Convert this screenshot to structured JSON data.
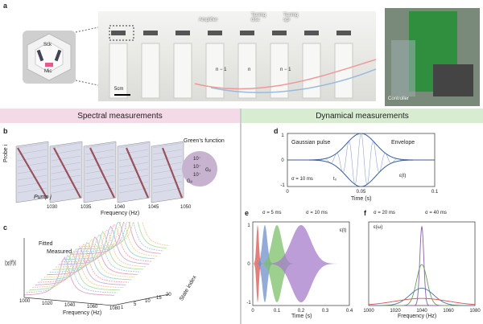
{
  "panels": {
    "a": "a",
    "b": "b",
    "c": "c",
    "d": "d",
    "e": "e",
    "f": "f"
  },
  "panel_a": {
    "photo_labels": {
      "sck": "Sck",
      "mic": "Mic",
      "amplifier": "Amplifier",
      "tuning_disc": "Tuning\ndisc",
      "tuning_spr": "Tuning\nspr",
      "n_minus": "n − 1",
      "n": "n",
      "n_plus": "n − 1",
      "scale": "5cm",
      "controller": "Controller"
    }
  },
  "sections": {
    "left": "Spectral measurements",
    "right": "Dynamical measurements"
  },
  "colors": {
    "pink": "#f4d9e6",
    "green": "#d8ecd2",
    "blue": "#5a7fb6"
  },
  "panel_b": {
    "probe_label": "Probe i",
    "pump_label": "Pump j",
    "xlabel": "Frequency (Hz)",
    "ticks": [
      "1030",
      "1035",
      "1040",
      "1045",
      "1050"
    ],
    "legend_title": "Green's function",
    "legend_vals": [
      "10⁻",
      "10⁻",
      "10⁻"
    ],
    "gij": "Gᵢⱼ",
    "gji": "Gⱼᵢ"
  },
  "panel_c": {
    "ylabel": "|χ(f)|",
    "xlabel": "Frequency (Hz)",
    "zlabel": "State index",
    "legend_fitted": "Fitted",
    "legend_measured": "Measured",
    "xticks": [
      "1000",
      "1020",
      "1040",
      "1060",
      "1080"
    ],
    "zticks": [
      "1",
      "5",
      "10",
      "15",
      "20"
    ]
  },
  "chart_data": [
    {
      "type": "line",
      "title": "",
      "legend": [
        "Gaussian pulse",
        "Envelope"
      ],
      "annotations": [
        "σ = 10 ms",
        "t₀",
        "ε(t)"
      ],
      "xlabel": "Time (s)",
      "xticks": [
        "0",
        "0.05",
        "0.1"
      ],
      "yticks": [
        "1",
        "0",
        "-1"
      ],
      "xlim": [
        0,
        0.1
      ],
      "ylim": [
        -1,
        1
      ],
      "pulse": {
        "center": 0.05,
        "sigma_s": 0.01,
        "frequency_hz": 1040
      }
    },
    {
      "type": "line",
      "legend": [
        "σ = 5 ms",
        "σ = 10 ms"
      ],
      "ylabel": "ε(t)",
      "xlabel": "Time (s)",
      "xticks": [
        "0",
        "0.1",
        "0.2",
        "0.3",
        "0.4"
      ],
      "yticks": [
        "1",
        "0",
        "-1"
      ],
      "xlim": [
        0,
        0.4
      ],
      "ylim": [
        -1,
        1
      ],
      "series": [
        {
          "name": "",
          "center": 0.02,
          "sigma": 0.005,
          "color": "#d9534f"
        },
        {
          "name": "",
          "center": 0.05,
          "sigma": 0.01,
          "color": "#6d8fc9"
        },
        {
          "name": "",
          "center": 0.1,
          "sigma": 0.02,
          "color": "#7cbf6a"
        },
        {
          "name": "",
          "center": 0.2,
          "sigma": 0.04,
          "color": "#a67cc9"
        }
      ]
    },
    {
      "type": "line",
      "legend": [
        "σ = 20 ms",
        "σ = 40 ms"
      ],
      "ylabel": "ε(ω)",
      "xlabel": "Frequency (Hz)",
      "xticks": [
        "1000",
        "1020",
        "1040",
        "1060",
        "1080"
      ],
      "xlim": [
        1000,
        1080
      ],
      "ylim": [
        0,
        1
      ],
      "series": [
        {
          "center": 1040,
          "width": 1.5,
          "amp": 1.0,
          "color": "#8a5fb0"
        },
        {
          "center": 1040,
          "width": 4,
          "amp": 0.52,
          "color": "#6a9f5a"
        },
        {
          "center": 1040,
          "width": 9,
          "amp": 0.22,
          "color": "#4a6fa5"
        },
        {
          "center": 1040,
          "width": 20,
          "amp": 0.09,
          "color": "#d9534f"
        }
      ]
    }
  ]
}
